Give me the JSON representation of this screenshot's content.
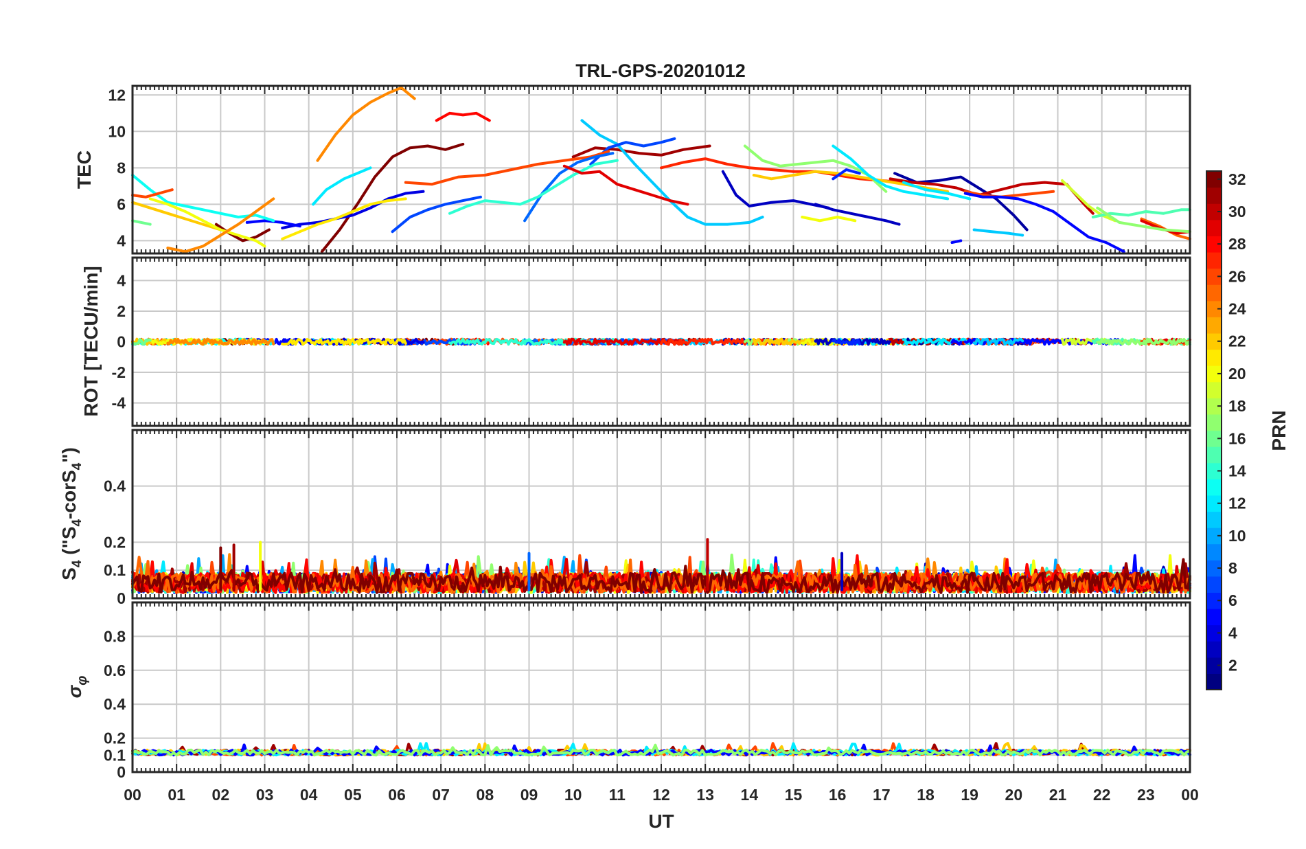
{
  "chart_data": {
    "type": "line",
    "title": "TRL-GPS-20201012",
    "xlabel": "UT",
    "x_range_hours": [
      0,
      24
    ],
    "x_tick_labels": [
      "00",
      "01",
      "02",
      "03",
      "04",
      "05",
      "06",
      "07",
      "08",
      "09",
      "10",
      "11",
      "12",
      "13",
      "14",
      "15",
      "16",
      "17",
      "18",
      "19",
      "20",
      "21",
      "22",
      "23",
      "00"
    ],
    "panels": [
      {
        "id": "tec",
        "ylabel": "TEC",
        "ylim": [
          3.3,
          12.5
        ],
        "y_ticks": [
          4,
          6,
          8,
          10,
          12
        ],
        "y_tick_labels": [
          "4",
          "6",
          "8",
          "10",
          "12"
        ],
        "series": [
          {
            "prn": 24,
            "t": [
              4.2,
              4.6,
              5.0,
              5.4,
              5.8,
              6.1,
              6.4
            ],
            "v": [
              8.4,
              9.8,
              10.9,
              11.6,
              12.1,
              12.4,
              11.8
            ]
          },
          {
            "prn": 28,
            "t": [
              6.9,
              7.2,
              7.5,
              7.8,
              8.1
            ],
            "v": [
              10.6,
              11.0,
              10.9,
              11.0,
              10.6
            ]
          },
          {
            "prn": 32,
            "t": [
              4.3,
              4.7,
              5.1,
              5.5,
              5.9,
              6.3,
              6.7,
              7.1,
              7.5
            ],
            "v": [
              3.4,
              4.6,
              6.0,
              7.5,
              8.6,
              9.1,
              9.2,
              9.0,
              9.3
            ]
          },
          {
            "prn": 32,
            "t": [
              1.9,
              2.2,
              2.5,
              2.8,
              3.1
            ],
            "v": [
              4.9,
              4.4,
              4.0,
              4.2,
              4.6
            ]
          },
          {
            "prn": 31,
            "t": [
              10.0,
              10.5,
              11.0,
              11.5,
              12.0,
              12.5,
              13.1
            ],
            "v": [
              8.6,
              9.1,
              9.0,
              8.8,
              8.7,
              9.0,
              9.2
            ]
          },
          {
            "prn": 12,
            "t": [
              4.1,
              4.4,
              4.8,
              5.2,
              5.4
            ],
            "v": [
              6.0,
              6.8,
              7.4,
              7.8,
              8.0
            ]
          },
          {
            "prn": 11,
            "t": [
              10.2,
              10.6,
              11.0,
              11.4,
              11.8,
              12.2,
              12.6,
              13.0,
              13.5,
              14.0,
              14.3
            ],
            "v": [
              10.6,
              9.8,
              9.3,
              8.2,
              7.2,
              6.2,
              5.3,
              4.9,
              4.9,
              5.0,
              5.3
            ]
          },
          {
            "prn": 7,
            "t": [
              10.4,
              10.8,
              11.2,
              11.6,
              12.0,
              12.3
            ],
            "v": [
              8.2,
              9.1,
              9.4,
              9.2,
              9.4,
              9.6
            ]
          },
          {
            "prn": 26,
            "t": [
              6.2,
              6.8,
              7.4,
              8.0,
              8.6,
              9.2,
              9.8,
              10.4,
              10.8
            ],
            "v": [
              7.2,
              7.1,
              7.5,
              7.6,
              7.9,
              8.2,
              8.4,
              8.6,
              8.9
            ]
          },
          {
            "prn": 7,
            "t": [
              5.9,
              6.3,
              6.7,
              7.1,
              7.5,
              7.9
            ],
            "v": [
              4.5,
              5.3,
              5.7,
              6.0,
              6.2,
              6.4
            ]
          },
          {
            "prn": 8,
            "t": [
              8.9,
              9.3,
              9.7,
              10.1,
              10.5,
              10.9
            ],
            "v": [
              5.1,
              6.6,
              7.7,
              8.3,
              8.6,
              8.8
            ]
          },
          {
            "prn": 14,
            "t": [
              7.2,
              7.6,
              8.0,
              8.4,
              8.8,
              9.2,
              9.6,
              10.0,
              10.5,
              11.0
            ],
            "v": [
              5.5,
              5.9,
              6.2,
              6.1,
              6.0,
              6.4,
              7.0,
              7.6,
              8.2,
              8.4
            ]
          },
          {
            "prn": 29,
            "t": [
              9.8,
              10.2,
              10.6,
              11.0,
              11.4,
              11.8,
              12.2,
              12.6
            ],
            "v": [
              8.1,
              7.7,
              7.8,
              7.1,
              6.8,
              6.5,
              6.2,
              6.0
            ]
          },
          {
            "prn": 4,
            "t": [
              3.4,
              3.8,
              4.2,
              4.6,
              5.0,
              5.4,
              5.8,
              6.2,
              6.6
            ],
            "v": [
              4.7,
              4.9,
              5.0,
              5.2,
              5.4,
              5.8,
              6.3,
              6.6,
              6.7
            ]
          },
          {
            "prn": 5,
            "t": [
              2.6,
              3.0,
              3.4,
              3.8
            ],
            "v": [
              5.0,
              5.1,
              5.0,
              4.8
            ]
          },
          {
            "prn": 21,
            "t": [
              3.4,
              3.8,
              4.2,
              4.6,
              5.0,
              5.4,
              5.8,
              6.2
            ],
            "v": [
              4.1,
              4.5,
              4.9,
              5.2,
              5.6,
              6.0,
              6.2,
              6.3
            ]
          },
          {
            "prn": 13,
            "t": [
              0.0,
              0.4,
              0.8,
              1.2,
              1.6,
              2.0,
              2.4,
              2.8,
              3.2
            ],
            "v": [
              7.6,
              6.8,
              6.1,
              5.9,
              5.7,
              5.5,
              5.3,
              5.4,
              5.1
            ]
          },
          {
            "prn": 26,
            "t": [
              0.0,
              0.3,
              0.6,
              0.9
            ],
            "v": [
              6.5,
              6.4,
              6.6,
              6.8
            ]
          },
          {
            "prn": 22,
            "t": [
              0.0,
              0.4,
              0.8,
              1.2,
              1.6,
              2.0
            ],
            "v": [
              6.1,
              5.8,
              5.5,
              5.2,
              4.9,
              4.6
            ]
          },
          {
            "prn": 20,
            "t": [
              0.4,
              0.8,
              1.2,
              1.6,
              2.0,
              2.4,
              2.8,
              3.0
            ],
            "v": [
              6.3,
              6.0,
              5.6,
              5.1,
              4.6,
              4.3,
              4.0,
              3.7
            ]
          },
          {
            "prn": 24,
            "t": [
              0.8,
              1.2,
              1.6,
              2.0,
              2.4,
              2.8,
              3.2
            ],
            "v": [
              3.6,
              3.4,
              3.7,
              4.3,
              4.9,
              5.6,
              6.3
            ]
          },
          {
            "prn": 16,
            "t": [
              0.0,
              0.2,
              0.4
            ],
            "v": [
              5.1,
              5.0,
              4.9
            ]
          },
          {
            "prn": 3,
            "t": [
              13.4,
              13.7,
              14.0,
              14.5,
              15.0,
              15.4,
              15.8
            ],
            "v": [
              7.8,
              6.5,
              5.9,
              6.1,
              6.2,
              6.0,
              5.8
            ]
          },
          {
            "prn": 27,
            "t": [
              12.0,
              12.5,
              13.0,
              13.5,
              14.0,
              14.5,
              15.0,
              15.5,
              16.0,
              16.5,
              17.0,
              17.5
            ],
            "v": [
              8.0,
              8.3,
              8.5,
              8.2,
              8.0,
              7.9,
              7.8,
              7.8,
              7.6,
              7.4,
              7.3,
              7.2
            ]
          },
          {
            "prn": 17,
            "t": [
              13.9,
              14.3,
              14.7,
              15.1,
              15.5,
              15.9,
              16.3,
              16.7,
              17.1
            ],
            "v": [
              9.2,
              8.4,
              8.1,
              8.2,
              8.3,
              8.4,
              8.1,
              7.6,
              6.7
            ]
          },
          {
            "prn": 22,
            "t": [
              14.1,
              14.5,
              15.0,
              15.5,
              16.0,
              16.5,
              17.0,
              17.5,
              18.0,
              18.5
            ],
            "v": [
              7.6,
              7.4,
              7.6,
              7.8,
              7.7,
              7.5,
              7.3,
              7.1,
              6.9,
              6.7
            ]
          },
          {
            "prn": 12,
            "t": [
              15.9,
              16.3,
              16.7,
              17.1,
              17.5,
              18.0,
              18.5
            ],
            "v": [
              9.2,
              8.5,
              7.6,
              7.0,
              6.7,
              6.5,
              6.3
            ]
          },
          {
            "prn": 20,
            "t": [
              15.2,
              15.6,
              16.0,
              16.4
            ],
            "v": [
              5.3,
              5.1,
              5.3,
              5.1
            ]
          },
          {
            "prn": 3,
            "t": [
              15.5,
              15.9,
              16.3,
              16.7,
              17.1,
              17.4
            ],
            "v": [
              6.0,
              5.7,
              5.5,
              5.3,
              5.1,
              4.9
            ]
          },
          {
            "prn": 6,
            "t": [
              15.9,
              16.2,
              16.5
            ],
            "v": [
              7.4,
              7.9,
              7.7
            ]
          },
          {
            "prn": 2,
            "t": [
              17.3,
              17.8,
              18.3,
              18.8,
              19.2,
              19.6,
              20.0,
              20.3
            ],
            "v": [
              7.7,
              7.2,
              7.3,
              7.5,
              6.9,
              6.3,
              5.4,
              4.6
            ]
          },
          {
            "prn": 30,
            "t": [
              17.2,
              17.7,
              18.2,
              18.7,
              19.2,
              19.7,
              20.2,
              20.7,
              21.2,
              21.6,
              21.8
            ],
            "v": [
              7.4,
              7.2,
              7.1,
              6.9,
              6.5,
              6.8,
              7.1,
              7.2,
              7.1,
              6.0,
              5.5
            ]
          },
          {
            "prn": 26,
            "t": [
              18.9,
              19.3,
              19.7,
              20.1,
              20.5,
              20.9
            ],
            "v": [
              6.7,
              6.5,
              6.4,
              6.5,
              6.6,
              6.7
            ]
          },
          {
            "prn": 12,
            "t": [
              17.5,
              18.0,
              18.5,
              19.0
            ],
            "v": [
              7.2,
              6.8,
              6.6,
              6.3
            ]
          },
          {
            "prn": 5,
            "t": [
              18.9,
              19.3,
              19.7,
              20.1,
              20.5,
              20.9,
              21.3,
              21.7,
              22.1,
              22.5
            ],
            "v": [
              6.6,
              6.4,
              6.4,
              6.3,
              6.0,
              5.6,
              4.9,
              4.2,
              3.9,
              3.4
            ]
          },
          {
            "prn": 11,
            "t": [
              19.1,
              19.5,
              19.9,
              20.2
            ],
            "v": [
              4.6,
              4.5,
              4.4,
              4.3
            ]
          },
          {
            "prn": 5,
            "t": [
              18.6,
              18.8
            ],
            "v": [
              3.9,
              4.0
            ]
          },
          {
            "prn": 19,
            "t": [
              21.1,
              21.4,
              21.7,
              22.0,
              22.3
            ],
            "v": [
              7.3,
              6.6,
              5.9,
              5.4,
              5.1
            ]
          },
          {
            "prn": 15,
            "t": [
              21.8,
              22.2,
              22.6,
              23.0,
              23.4,
              23.8,
              24.0
            ],
            "v": [
              5.3,
              5.5,
              5.4,
              5.6,
              5.5,
              5.7,
              5.7
            ]
          },
          {
            "prn": 25,
            "t": [
              22.9,
              23.3,
              23.7,
              24.0
            ],
            "v": [
              5.2,
              4.8,
              4.3,
              4.1
            ]
          },
          {
            "prn": 29,
            "t": [
              22.9,
              23.3,
              23.7,
              24.0
            ],
            "v": [
              5.1,
              4.7,
              4.4,
              4.5
            ]
          },
          {
            "prn": 17,
            "t": [
              21.9,
              22.4,
              22.9,
              23.4,
              24.0
            ],
            "v": [
              5.8,
              5.0,
              4.8,
              4.6,
              4.5
            ]
          }
        ]
      },
      {
        "id": "rot",
        "ylabel": "ROT [TECU/min]",
        "ylim": [
          -5.5,
          5.5
        ],
        "y_ticks": [
          -4,
          -2,
          0,
          2,
          4
        ],
        "y_tick_labels": [
          "-4",
          "-2",
          "0",
          "2",
          "4"
        ],
        "note": "All PRNs near zero (|ROT| < 0.3 TECU/min) throughout the day"
      },
      {
        "id": "s4",
        "ylabel": "S4 (\"S4-corS4\")",
        "ylim": [
          0,
          0.6
        ],
        "y_ticks": [
          0,
          0.1,
          0.2,
          0.4
        ],
        "y_tick_labels": [
          "0",
          "0.1",
          "0.2",
          "0.4"
        ],
        "note": "Background S4 about 0.02-0.12 with spikes up to ~0.2; maximum ~0.21 near 13 UT"
      },
      {
        "id": "sigma_phi",
        "ylabel": "σφ",
        "ylim": [
          0,
          1.0
        ],
        "y_ticks": [
          0,
          0.1,
          0.2,
          0.4,
          0.6,
          0.8
        ],
        "y_tick_labels": [
          "0",
          "0.1",
          "0.2",
          "0.4",
          "0.6",
          "0.8"
        ],
        "note": "σφ about 0.11-0.15 all day, occasional spikes to ~0.2"
      }
    ],
    "colorbar": {
      "label": "PRN",
      "min": 1,
      "max": 32,
      "tick_values": [
        2,
        4,
        6,
        8,
        10,
        12,
        14,
        16,
        18,
        20,
        22,
        24,
        26,
        28,
        30,
        32
      ],
      "tick_labels": [
        "2",
        "4",
        "6",
        "8",
        "10",
        "12",
        "14",
        "16",
        "18",
        "20",
        "22",
        "24",
        "26",
        "28",
        "30",
        "32"
      ],
      "colormap": "jet"
    }
  }
}
